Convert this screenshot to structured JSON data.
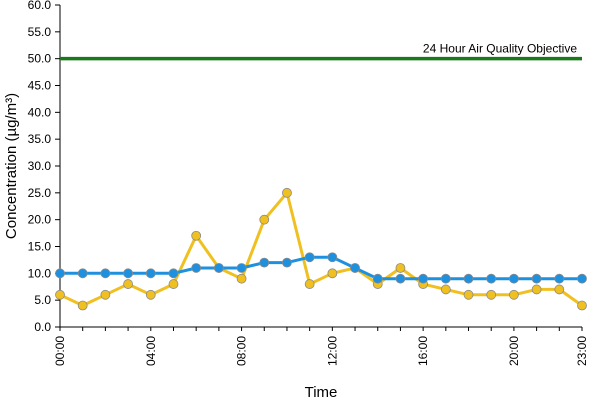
{
  "chart_data": {
    "type": "line",
    "xlabel": "Time",
    "ylabel": "Concentration (µg/m³)",
    "ylim": [
      0,
      60
    ],
    "y_ticks": [
      "0.0",
      "5.0",
      "10.0",
      "15.0",
      "20.0",
      "25.0",
      "30.0",
      "35.0",
      "40.0",
      "45.0",
      "50.0",
      "55.0",
      "60.0"
    ],
    "y_tick_values": [
      0,
      5,
      10,
      15,
      20,
      25,
      30,
      35,
      40,
      45,
      50,
      55,
      60
    ],
    "x": [
      0,
      1,
      2,
      3,
      4,
      5,
      6,
      7,
      8,
      9,
      10,
      11,
      12,
      13,
      14,
      15,
      16,
      17,
      18,
      19,
      20,
      21,
      22,
      23
    ],
    "x_ticks": [
      "00:00",
      "04:00",
      "08:00",
      "12:00",
      "16:00",
      "20:00",
      "23:00"
    ],
    "x_tick_values": [
      0,
      4,
      8,
      12,
      16,
      20,
      23
    ],
    "xlim": [
      0,
      23
    ],
    "grid": false,
    "series": [
      {
        "color": "#1e90e0",
        "values": [
          10,
          10,
          10,
          10,
          10,
          10,
          11,
          11,
          11,
          12,
          12,
          13,
          13,
          11,
          9,
          9,
          9,
          9,
          9,
          9,
          9,
          9,
          9,
          9
        ]
      },
      {
        "color": "#f0c020",
        "values": [
          6,
          4,
          6,
          8,
          6,
          8,
          17,
          11,
          9,
          20,
          25,
          8,
          10,
          11,
          8,
          11,
          8,
          7,
          6,
          6,
          6,
          7,
          7,
          4
        ]
      }
    ],
    "reference_line": {
      "value": 50,
      "label": "24 Hour Air Quality Objective",
      "color": "#1a7a1a"
    }
  }
}
